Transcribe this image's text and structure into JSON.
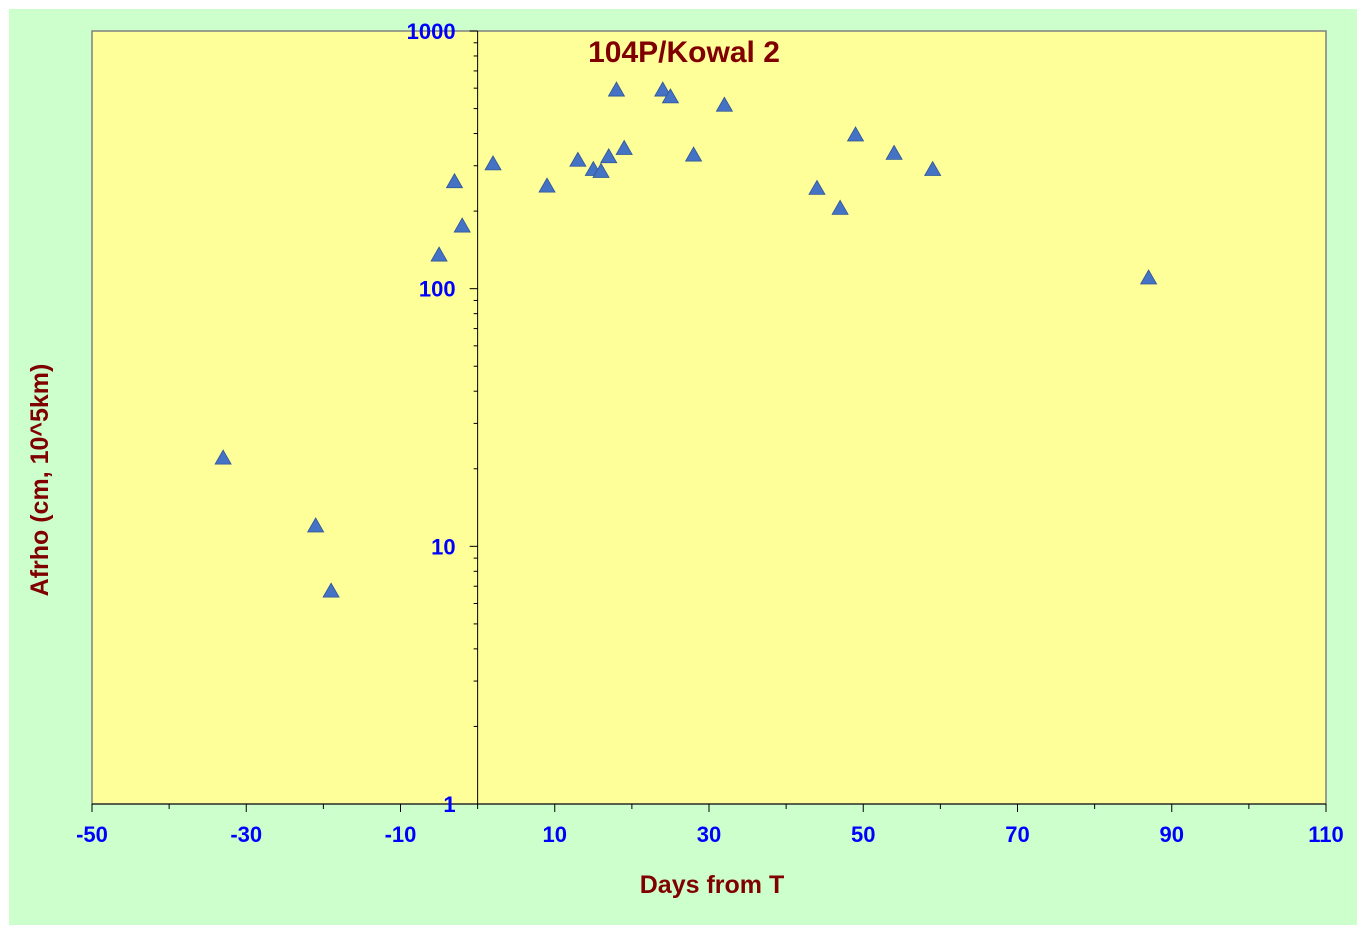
{
  "chart_data": {
    "type": "scatter",
    "title": "104P/Kowal 2",
    "xlabel": "Days from T",
    "ylabel": "Afrho (cm, 10^5km)",
    "xlim": [
      -50,
      110
    ],
    "ylim": [
      1,
      1000
    ],
    "yscale": "log",
    "x_ticks": [
      -50,
      -30,
      -10,
      10,
      30,
      50,
      70,
      90,
      110
    ],
    "x_tick_labels": [
      "-50",
      "-30",
      "-10",
      "10",
      "30",
      "50",
      "70",
      "90",
      "110"
    ],
    "y_ticks": [
      1,
      10,
      100,
      1000
    ],
    "y_tick_labels": [
      "1",
      "10",
      "100",
      "1000"
    ],
    "grid": false,
    "legend": "none",
    "marker": "triangle",
    "colors": {
      "outer_background": "#ccffcc",
      "plot_background": "#ffff99",
      "marker": "#4472c4",
      "title": "#800000",
      "axis_label": "#800000",
      "tick_label": "#0000ff",
      "axis_line": "#000000",
      "frame": "#808080"
    },
    "series": [
      {
        "points": [
          {
            "x": -33,
            "y": 22
          },
          {
            "x": -21,
            "y": 12
          },
          {
            "x": -19,
            "y": 6.7
          },
          {
            "x": -5,
            "y": 135
          },
          {
            "x": -3,
            "y": 260
          },
          {
            "x": -2,
            "y": 175
          },
          {
            "x": 2,
            "y": 305
          },
          {
            "x": 9,
            "y": 250
          },
          {
            "x": 13,
            "y": 315
          },
          {
            "x": 15,
            "y": 290
          },
          {
            "x": 16,
            "y": 285
          },
          {
            "x": 17,
            "y": 325
          },
          {
            "x": 18,
            "y": 590
          },
          {
            "x": 19,
            "y": 350
          },
          {
            "x": 24,
            "y": 590
          },
          {
            "x": 25,
            "y": 555
          },
          {
            "x": 28,
            "y": 330
          },
          {
            "x": 32,
            "y": 515
          },
          {
            "x": 44,
            "y": 245
          },
          {
            "x": 47,
            "y": 205
          },
          {
            "x": 49,
            "y": 395
          },
          {
            "x": 54,
            "y": 335
          },
          {
            "x": 59,
            "y": 290
          },
          {
            "x": 87,
            "y": 110
          }
        ]
      }
    ]
  }
}
